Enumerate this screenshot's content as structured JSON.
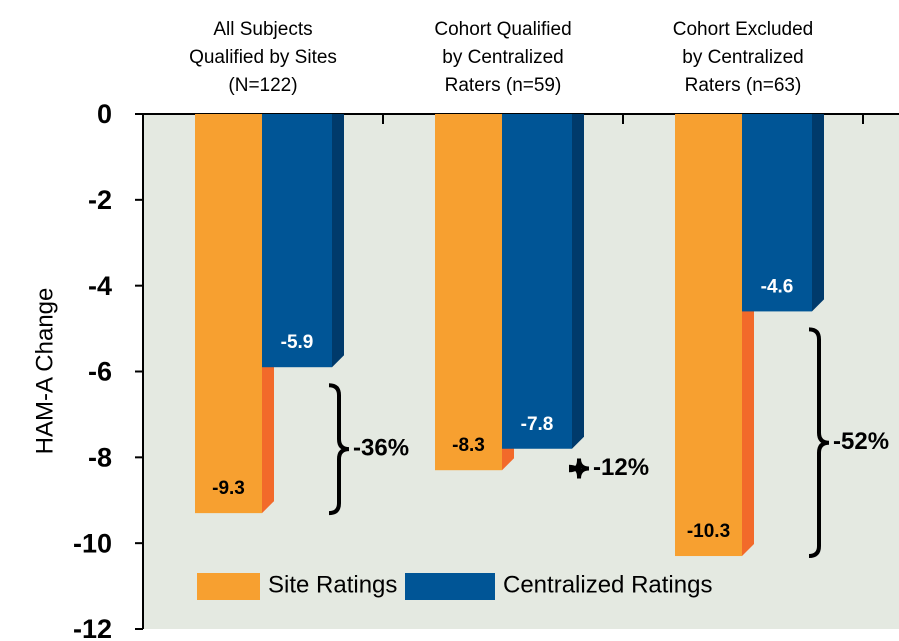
{
  "chart_data": {
    "type": "bar",
    "categories": [
      "All Subjects\nQualified by Sites\n(N=122)",
      "Cohort Qualified\nby Centralized\nRaters (n=59)",
      "Cohort Excluded\nby Centralized\nRaters (n=63)"
    ],
    "series": [
      {
        "name": "Site Ratings",
        "color": "#f7a030",
        "values": [
          -9.3,
          -8.3,
          -10.3
        ]
      },
      {
        "name": "Centralized Ratings",
        "color": "#005596",
        "values": [
          -5.9,
          -7.8,
          -4.6
        ]
      }
    ],
    "annotations": [
      "-36%",
      "-12%",
      "-52%"
    ],
    "ylabel": "HAM-A Change",
    "ylim": [
      -12,
      0
    ],
    "yticks": [
      0,
      -2,
      -4,
      -6,
      -8,
      -10,
      -12
    ],
    "legend": "bottom"
  }
}
